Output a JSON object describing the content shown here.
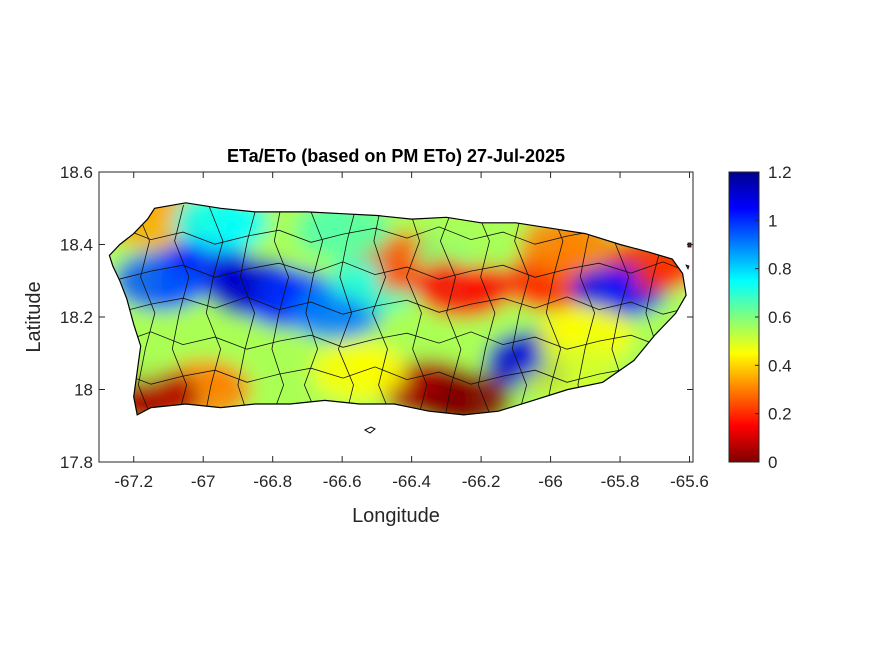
{
  "chart_data": {
    "type": "heatmap",
    "title": "ETa/ETo (based on PM ETo) 27-Jul-2025",
    "xlabel": "Longitude",
    "ylabel": "Latitude",
    "xlim": [
      -67.3,
      -65.59
    ],
    "ylim": [
      17.8,
      18.6
    ],
    "x_ticks": [
      {
        "value": -67.2,
        "label": "-67.2"
      },
      {
        "value": -67.0,
        "label": "-67"
      },
      {
        "value": -66.8,
        "label": "-66.8"
      },
      {
        "value": -66.6,
        "label": "-66.6"
      },
      {
        "value": -66.4,
        "label": "-66.4"
      },
      {
        "value": -66.2,
        "label": "-66.2"
      },
      {
        "value": -66.0,
        "label": "-66"
      },
      {
        "value": -65.8,
        "label": "-65.8"
      },
      {
        "value": -65.6,
        "label": "-65.6"
      }
    ],
    "y_ticks": [
      {
        "value": 17.8,
        "label": "17.8"
      },
      {
        "value": 18.0,
        "label": "18"
      },
      {
        "value": 18.2,
        "label": "18.2"
      },
      {
        "value": 18.4,
        "label": "18.4"
      },
      {
        "value": 18.6,
        "label": "18.6"
      }
    ],
    "colorbar": {
      "colormap": "jet",
      "range": [
        0,
        1.2
      ],
      "ticks": [
        {
          "value": 0,
          "label": "0"
        },
        {
          "value": 0.2,
          "label": "0.2"
        },
        {
          "value": 0.4,
          "label": "0.4"
        },
        {
          "value": 0.6,
          "label": "0.6"
        },
        {
          "value": 0.8,
          "label": "0.8"
        },
        {
          "value": 1.0,
          "label": "1"
        },
        {
          "value": 1.2,
          "label": "1.2"
        }
      ]
    },
    "island_outline": [
      [
        -67.27,
        18.37
      ],
      [
        -67.24,
        18.4
      ],
      [
        -67.2,
        18.43
      ],
      [
        -67.16,
        18.47
      ],
      [
        -67.14,
        18.5
      ],
      [
        -67.05,
        18.515
      ],
      [
        -66.95,
        18.5
      ],
      [
        -66.85,
        18.49
      ],
      [
        -66.7,
        18.49
      ],
      [
        -66.6,
        18.485
      ],
      [
        -66.5,
        18.48
      ],
      [
        -66.4,
        18.47
      ],
      [
        -66.3,
        18.475
      ],
      [
        -66.2,
        18.46
      ],
      [
        -66.1,
        18.46
      ],
      [
        -66.0,
        18.445
      ],
      [
        -65.9,
        18.43
      ],
      [
        -65.8,
        18.4
      ],
      [
        -65.72,
        18.38
      ],
      [
        -65.65,
        18.36
      ],
      [
        -65.62,
        18.32
      ],
      [
        -65.61,
        18.26
      ],
      [
        -65.64,
        18.21
      ],
      [
        -65.7,
        18.15
      ],
      [
        -65.76,
        18.08
      ],
      [
        -65.85,
        18.02
      ],
      [
        -65.95,
        18.0
      ],
      [
        -66.05,
        17.97
      ],
      [
        -66.15,
        17.94
      ],
      [
        -66.25,
        17.93
      ],
      [
        -66.35,
        17.94
      ],
      [
        -66.45,
        17.96
      ],
      [
        -66.55,
        17.96
      ],
      [
        -66.65,
        17.97
      ],
      [
        -66.75,
        17.96
      ],
      [
        -66.85,
        17.96
      ],
      [
        -66.95,
        17.95
      ],
      [
        -67.05,
        17.96
      ],
      [
        -67.15,
        17.95
      ],
      [
        -67.19,
        17.93
      ],
      [
        -67.2,
        17.98
      ],
      [
        -67.19,
        18.05
      ],
      [
        -67.18,
        18.12
      ],
      [
        -67.2,
        18.18
      ],
      [
        -67.22,
        18.25
      ],
      [
        -67.24,
        18.3
      ],
      [
        -67.26,
        18.34
      ]
    ],
    "value_hotspots": [
      {
        "lon": -67.0,
        "lat": 18.34,
        "value": 1.05
      },
      {
        "lon": -66.85,
        "lat": 18.28,
        "value": 1.12
      },
      {
        "lon": -66.75,
        "lat": 18.25,
        "value": 1.0
      },
      {
        "lon": -67.12,
        "lat": 18.3,
        "value": 0.95
      },
      {
        "lon": -66.62,
        "lat": 18.22,
        "value": 0.9
      },
      {
        "lon": -66.5,
        "lat": 18.3,
        "value": 0.7
      },
      {
        "lon": -66.42,
        "lat": 18.35,
        "value": 0.25
      },
      {
        "lon": -66.25,
        "lat": 18.38,
        "value": 0.6
      },
      {
        "lon": -66.25,
        "lat": 18.28,
        "value": 0.15
      },
      {
        "lon": -66.0,
        "lat": 18.3,
        "value": 0.2
      },
      {
        "lon": -66.05,
        "lat": 18.08,
        "value": 1.1
      },
      {
        "lon": -65.8,
        "lat": 18.28,
        "value": 1.05
      },
      {
        "lon": -65.7,
        "lat": 18.35,
        "value": 0.2
      },
      {
        "lon": -65.9,
        "lat": 18.15,
        "value": 0.45
      },
      {
        "lon": -66.35,
        "lat": 18.0,
        "value": 0.05
      },
      {
        "lon": -66.25,
        "lat": 17.97,
        "value": 0.0
      },
      {
        "lon": -66.55,
        "lat": 18.05,
        "value": 0.45
      },
      {
        "lon": -67.0,
        "lat": 18.0,
        "value": 0.3
      },
      {
        "lon": -67.15,
        "lat": 17.98,
        "value": 0.05
      },
      {
        "lon": -67.2,
        "lat": 18.1,
        "value": 0.55
      },
      {
        "lon": -67.15,
        "lat": 18.47,
        "value": 0.35
      },
      {
        "lon": -66.95,
        "lat": 18.46,
        "value": 0.75
      },
      {
        "lon": -66.6,
        "lat": 18.44,
        "value": 0.65
      },
      {
        "lon": -66.2,
        "lat": 18.42,
        "value": 0.55
      },
      {
        "lon": -65.95,
        "lat": 18.4,
        "value": 0.3
      },
      {
        "lon": -65.95,
        "lat": 18.05,
        "value": 0.5
      }
    ]
  }
}
